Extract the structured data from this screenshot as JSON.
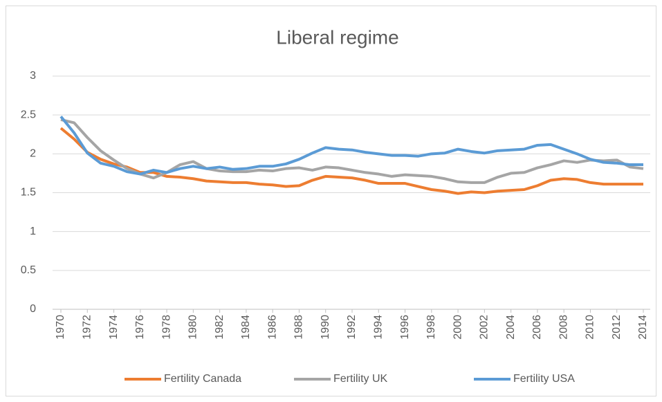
{
  "chart_data": {
    "type": "line",
    "title": "Liberal regime",
    "x": [
      1970,
      1971,
      1972,
      1973,
      1974,
      1975,
      1976,
      1977,
      1978,
      1979,
      1980,
      1981,
      1982,
      1983,
      1984,
      1985,
      1986,
      1987,
      1988,
      1989,
      1990,
      1991,
      1992,
      1993,
      1994,
      1995,
      1996,
      1997,
      1998,
      1999,
      2000,
      2001,
      2002,
      2003,
      2004,
      2005,
      2006,
      2007,
      2008,
      2009,
      2010,
      2011,
      2012,
      2013,
      2014
    ],
    "series": [
      {
        "name": "Fertility Canada",
        "color": "#ed7d31",
        "values": [
          2.33,
          2.19,
          2.02,
          1.93,
          1.87,
          1.83,
          1.76,
          1.76,
          1.71,
          1.7,
          1.68,
          1.65,
          1.64,
          1.63,
          1.63,
          1.61,
          1.6,
          1.58,
          1.59,
          1.66,
          1.71,
          1.7,
          1.69,
          1.66,
          1.62,
          1.62,
          1.62,
          1.58,
          1.54,
          1.52,
          1.49,
          1.51,
          1.5,
          1.52,
          1.53,
          1.54,
          1.59,
          1.66,
          1.68,
          1.67,
          1.63,
          1.61,
          1.61,
          1.61,
          1.61
        ]
      },
      {
        "name": "Fertility UK",
        "color": "#a5a5a5",
        "values": [
          2.44,
          2.4,
          2.21,
          2.04,
          1.92,
          1.81,
          1.74,
          1.69,
          1.76,
          1.86,
          1.9,
          1.81,
          1.78,
          1.77,
          1.77,
          1.79,
          1.78,
          1.81,
          1.82,
          1.79,
          1.83,
          1.82,
          1.79,
          1.76,
          1.74,
          1.71,
          1.73,
          1.72,
          1.71,
          1.68,
          1.64,
          1.63,
          1.63,
          1.7,
          1.75,
          1.76,
          1.82,
          1.86,
          1.91,
          1.89,
          1.92,
          1.91,
          1.92,
          1.83,
          1.81
        ]
      },
      {
        "name": "Fertility USA",
        "color": "#5b9bd5",
        "values": [
          2.48,
          2.27,
          2.01,
          1.88,
          1.84,
          1.77,
          1.74,
          1.79,
          1.76,
          1.81,
          1.84,
          1.81,
          1.83,
          1.8,
          1.81,
          1.84,
          1.84,
          1.87,
          1.93,
          2.01,
          2.08,
          2.06,
          2.05,
          2.02,
          2.0,
          1.98,
          1.98,
          1.97,
          2.0,
          2.01,
          2.06,
          2.03,
          2.01,
          2.04,
          2.05,
          2.06,
          2.11,
          2.12,
          2.06,
          2.0,
          1.93,
          1.89,
          1.88,
          1.86,
          1.86
        ]
      }
    ],
    "xlim": [
      1970,
      2014
    ],
    "xticks": [
      1970,
      1972,
      1974,
      1976,
      1978,
      1980,
      1982,
      1984,
      1986,
      1988,
      1990,
      1992,
      1994,
      1996,
      1998,
      2000,
      2002,
      2004,
      2006,
      2008,
      2010,
      2012,
      2014
    ],
    "ylim": [
      0,
      3
    ],
    "yticks": [
      0,
      0.5,
      1,
      1.5,
      2,
      2.5,
      3
    ],
    "grid": true,
    "legend": "bottom"
  }
}
